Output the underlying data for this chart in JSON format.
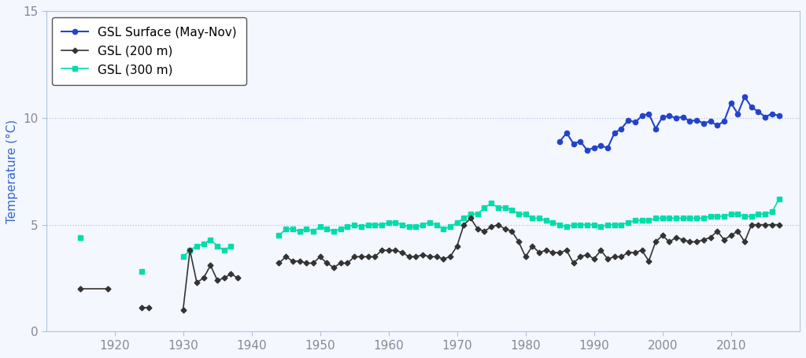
{
  "ylabel": "Temperature (°C)",
  "ylabel_color": "#3366cc",
  "ylim": [
    0,
    15
  ],
  "yticks": [
    0,
    5,
    10,
    15
  ],
  "hlines": [
    5.0,
    10.0
  ],
  "bg_color": "#f5f7ff",
  "spine_color": "#b0c4de",
  "surface_color": "#2244cc",
  "surface_marker": "o",
  "surface_markersize": 4.5,
  "surface_linewidth": 1.5,
  "surface_label": "GSL Surface (May-Nov)",
  "surface_years": [
    1985,
    1986,
    1987,
    1988,
    1989,
    1990,
    1991,
    1992,
    1993,
    1994,
    1995,
    1996,
    1997,
    1998,
    1999,
    2000,
    2001,
    2002,
    2003,
    2004,
    2005,
    2006,
    2007,
    2008,
    2009,
    2010,
    2011,
    2012,
    2013,
    2014,
    2015,
    2016,
    2017
  ],
  "surface_temps": [
    8.9,
    9.3,
    8.8,
    8.9,
    8.5,
    8.6,
    8.7,
    8.6,
    9.3,
    9.5,
    9.9,
    9.8,
    10.1,
    10.2,
    9.5,
    10.05,
    10.1,
    10.0,
    10.05,
    9.85,
    9.9,
    9.75,
    9.85,
    9.65,
    9.85,
    10.7,
    10.2,
    11.0,
    10.5,
    10.3,
    10.05,
    10.2,
    10.1
  ],
  "depth200_color": "#333333",
  "depth200_marker": "D",
  "depth200_markersize": 3.5,
  "depth200_linewidth": 1.2,
  "depth200_label": "GSL (200 m)",
  "depth200_years_seg1": [
    1915,
    1919
  ],
  "depth200_temps_seg1": [
    2.0,
    2.0
  ],
  "depth200_years_seg2": [
    1924,
    1925
  ],
  "depth200_temps_seg2": [
    1.1,
    1.1
  ],
  "depth200_years_seg3": [
    1930,
    1931,
    1932,
    1933,
    1934,
    1935,
    1936,
    1937,
    1938
  ],
  "depth200_temps_seg3": [
    1.0,
    3.8,
    2.3,
    2.5,
    3.1,
    2.4,
    2.5,
    2.7,
    2.5
  ],
  "depth200_years_seg4": [
    1944,
    1945,
    1946,
    1947,
    1948,
    1949,
    1950,
    1951,
    1952,
    1953,
    1954,
    1955,
    1956,
    1957,
    1958,
    1959,
    1960,
    1961,
    1962,
    1963,
    1964,
    1965,
    1966,
    1967,
    1968,
    1969,
    1970,
    1971,
    1972,
    1973,
    1974,
    1975,
    1976,
    1977,
    1978,
    1979,
    1980,
    1981,
    1982,
    1983,
    1984,
    1985,
    1986,
    1987,
    1988,
    1989,
    1990,
    1991,
    1992,
    1993,
    1994,
    1995,
    1996,
    1997,
    1998,
    1999,
    2000,
    2001,
    2002,
    2003,
    2004,
    2005,
    2006,
    2007,
    2008,
    2009,
    2010,
    2011,
    2012,
    2013,
    2014,
    2015,
    2016,
    2017
  ],
  "depth200_temps_seg4": [
    3.2,
    3.5,
    3.3,
    3.3,
    3.2,
    3.2,
    3.5,
    3.2,
    3.0,
    3.2,
    3.2,
    3.5,
    3.5,
    3.5,
    3.5,
    3.8,
    3.8,
    3.8,
    3.7,
    3.5,
    3.5,
    3.6,
    3.5,
    3.5,
    3.4,
    3.5,
    4.0,
    5.0,
    5.3,
    4.8,
    4.7,
    4.9,
    5.0,
    4.8,
    4.7,
    4.2,
    3.5,
    4.0,
    3.7,
    3.8,
    3.7,
    3.7,
    3.8,
    3.2,
    3.5,
    3.6,
    3.4,
    3.8,
    3.4,
    3.5,
    3.5,
    3.7,
    3.7,
    3.8,
    3.3,
    4.2,
    4.5,
    4.2,
    4.4,
    4.3,
    4.2,
    4.2,
    4.3,
    4.4,
    4.7,
    4.3,
    4.5,
    4.7,
    4.2,
    5.0,
    5.0,
    5.0,
    5.0,
    5.0
  ],
  "depth300_color": "#00ddaa",
  "depth300_marker": "s",
  "depth300_markersize": 4.5,
  "depth300_linewidth": 1.2,
  "depth300_label": "GSL (300 m)",
  "depth300_years_seg1": [
    1915
  ],
  "depth300_temps_seg1": [
    4.4
  ],
  "depth300_years_seg2": [
    1924
  ],
  "depth300_temps_seg2": [
    2.8
  ],
  "depth300_years_seg3": [
    1930,
    1931,
    1932,
    1933,
    1934,
    1935,
    1936,
    1937
  ],
  "depth300_temps_seg3": [
    3.5,
    3.8,
    4.0,
    4.1,
    4.3,
    4.0,
    3.8,
    4.0
  ],
  "depth300_years_seg4": [
    1944,
    1945,
    1946,
    1947,
    1948,
    1949,
    1950,
    1951,
    1952,
    1953,
    1954,
    1955,
    1956,
    1957,
    1958,
    1959,
    1960,
    1961,
    1962,
    1963,
    1964,
    1965,
    1966,
    1967,
    1968,
    1969,
    1970,
    1971,
    1972,
    1973,
    1974,
    1975,
    1976,
    1977,
    1978,
    1979,
    1980,
    1981,
    1982,
    1983,
    1984,
    1985,
    1986,
    1987,
    1988,
    1989,
    1990,
    1991,
    1992,
    1993,
    1994,
    1995,
    1996,
    1997,
    1998,
    1999,
    2000,
    2001,
    2002,
    2003,
    2004,
    2005,
    2006,
    2007,
    2008,
    2009,
    2010,
    2011,
    2012,
    2013,
    2014,
    2015,
    2016,
    2017
  ],
  "depth300_temps_seg4": [
    4.5,
    4.8,
    4.8,
    4.7,
    4.8,
    4.7,
    4.9,
    4.8,
    4.7,
    4.8,
    4.9,
    5.0,
    4.9,
    5.0,
    5.0,
    5.0,
    5.1,
    5.1,
    5.0,
    4.9,
    4.9,
    5.0,
    5.1,
    5.0,
    4.8,
    4.9,
    5.1,
    5.3,
    5.5,
    5.5,
    5.8,
    6.0,
    5.8,
    5.8,
    5.7,
    5.5,
    5.5,
    5.3,
    5.3,
    5.2,
    5.1,
    5.0,
    4.9,
    5.0,
    5.0,
    5.0,
    5.0,
    4.9,
    5.0,
    5.0,
    5.0,
    5.1,
    5.2,
    5.2,
    5.2,
    5.3,
    5.3,
    5.3,
    5.3,
    5.3,
    5.3,
    5.3,
    5.3,
    5.4,
    5.4,
    5.4,
    5.5,
    5.5,
    5.4,
    5.4,
    5.5,
    5.5,
    5.6,
    6.2
  ],
  "legend_fontsize": 11,
  "axis_fontsize": 11,
  "tick_color": "#888899",
  "xticks": [
    1920,
    1930,
    1940,
    1950,
    1960,
    1970,
    1980,
    1990,
    2000,
    2010
  ],
  "xlim": [
    1910,
    2020
  ]
}
